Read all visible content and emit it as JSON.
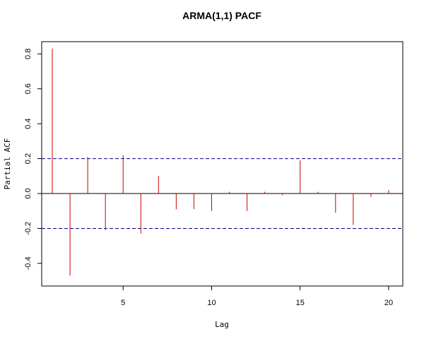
{
  "chart_data": {
    "type": "bar",
    "title": "ARMA(1,1) PACF",
    "xlabel": "Lag",
    "ylabel": "Partial ACF",
    "x": [
      1,
      2,
      3,
      4,
      5,
      6,
      7,
      8,
      9,
      10,
      11,
      12,
      13,
      14,
      15,
      16,
      17,
      18,
      19,
      20
    ],
    "values": [
      0.83,
      -0.47,
      0.21,
      -0.21,
      0.22,
      -0.23,
      0.1,
      -0.09,
      -0.09,
      -0.1,
      0.01,
      -0.1,
      0.01,
      -0.01,
      0.19,
      0.01,
      -0.11,
      -0.18,
      -0.02,
      0.02
    ],
    "confidence_band": [
      0.2,
      -0.2
    ],
    "xlim": [
      0.4,
      20.8
    ],
    "ylim": [
      -0.53,
      0.87
    ],
    "x_ticks": [
      5,
      10,
      15,
      20
    ],
    "y_ticks": [
      -0.4,
      -0.2,
      0.0,
      0.2,
      0.4,
      0.6,
      0.8
    ],
    "grid": false,
    "bar_color": "#cc0000",
    "band_color": "#00008b",
    "zero_line_color": "#000000"
  }
}
